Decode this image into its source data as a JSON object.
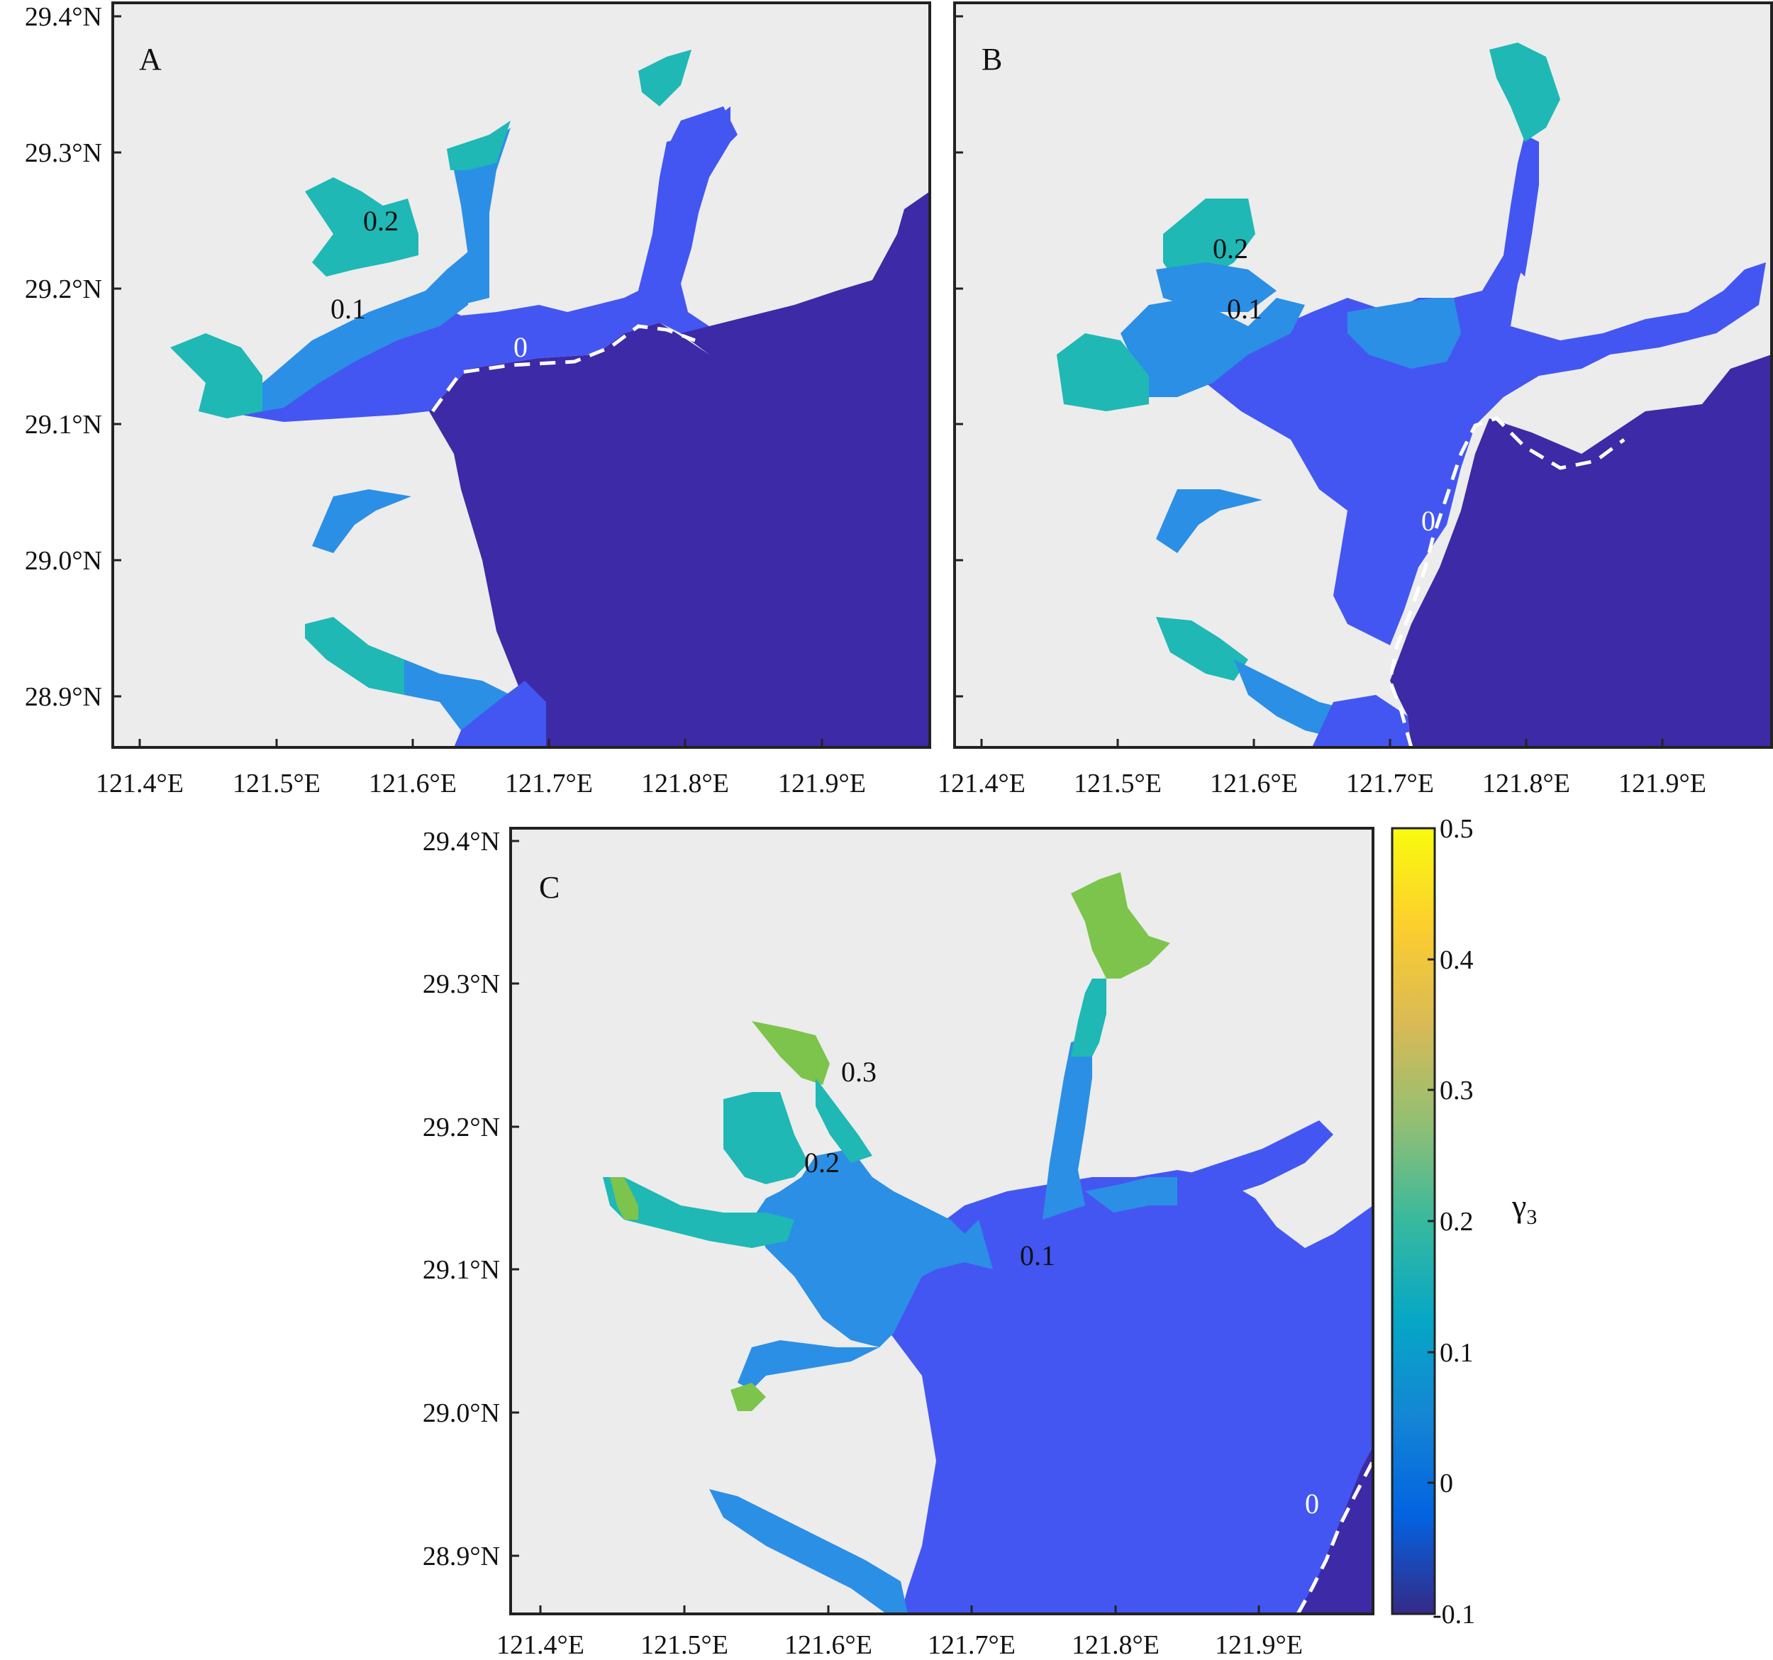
{
  "colors": {
    "land": "#ececec",
    "frame": "#222222",
    "contour_zero": "#ffffff",
    "value_neg": "#3d2aa6",
    "value_0": "#4456f1",
    "value_01": "#2b8fe5",
    "value_02": "#1fb8b5",
    "value_03": "#7cc44c"
  },
  "axes": {
    "lon_ticks": [
      "121.4°E",
      "121.5°E",
      "121.6°E",
      "121.7°E",
      "121.8°E",
      "121.9°E"
    ],
    "lat_ticks": [
      "29.4°N",
      "29.3°N",
      "29.2°N",
      "29.1°N",
      "29.0°N",
      "28.9°N"
    ],
    "lon_range": [
      121.38,
      121.98
    ],
    "lat_range": [
      28.86,
      29.42
    ]
  },
  "panels": [
    {
      "id": "A",
      "letter": "A",
      "contours": [
        {
          "text": "0.2",
          "color": "#111111"
        },
        {
          "text": "0.1",
          "color": "#111111"
        },
        {
          "text": "0",
          "color": "#ffffff"
        }
      ]
    },
    {
      "id": "B",
      "letter": "B",
      "contours": [
        {
          "text": "0.2",
          "color": "#111111"
        },
        {
          "text": "0.1",
          "color": "#111111"
        },
        {
          "text": "0",
          "color": "#ffffff"
        }
      ]
    },
    {
      "id": "C",
      "letter": "C",
      "contours": [
        {
          "text": "0.3",
          "color": "#111111"
        },
        {
          "text": "0.2",
          "color": "#111111"
        },
        {
          "text": "0.1",
          "color": "#111111"
        },
        {
          "text": "0",
          "color": "#ffffff"
        }
      ]
    }
  ],
  "colorbar": {
    "label": "γ",
    "label_sub": "3",
    "ticks": [
      "0.5",
      "0.4",
      "0.3",
      "0.2",
      "0.1",
      "0",
      "-0.1"
    ],
    "range": [
      -0.1,
      0.5
    ],
    "colormap": "parula"
  }
}
